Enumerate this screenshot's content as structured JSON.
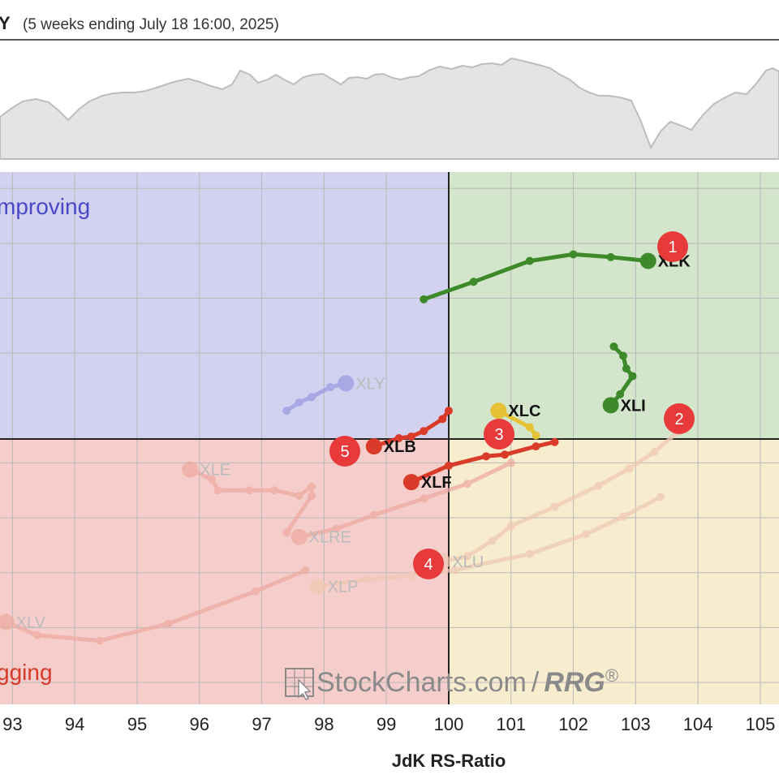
{
  "header": {
    "title": "Y",
    "subtitle": "(5 weeks ending July 18 16:00, 2025)"
  },
  "benchmark_area": {
    "fill": "#e4e4e4",
    "stroke": "#bdbdbd"
  },
  "quadrants": {
    "improving": {
      "label": "mproving",
      "color": "#4848c8",
      "fill": "#d2d2f0"
    },
    "leading": {
      "label": "",
      "color": "#2e7a1e",
      "fill": "#d3e6cc"
    },
    "weakening": {
      "label": "",
      "color": "#c9a227",
      "fill": "#f7ecce"
    },
    "lagging": {
      "label": "gging",
      "color": "#d83a2a",
      "fill": "#f5cecc"
    }
  },
  "badge_color": "#e8393b",
  "watermark": {
    "text": "StockCharts.com",
    "separator": "/",
    "suffix": "RRG",
    "reg": "®"
  },
  "chart_data": {
    "type": "scatter",
    "xlabel": "JdK RS-Ratio",
    "ylabel": "",
    "xlim": [
      92.8,
      105.3
    ],
    "ylim": [
      94.6,
      104.3
    ],
    "x_ticks": [
      "93",
      "94",
      "95",
      "96",
      "97",
      "98",
      "99",
      "100",
      "101",
      "102",
      "103",
      "104",
      "105"
    ],
    "center": [
      100,
      100
    ],
    "grid": true,
    "series": [
      {
        "name": "XLK",
        "color": "#3e8a2a",
        "faded": false,
        "points": [
          [
            99.6,
            101.98
          ],
          [
            100.4,
            102.3
          ],
          [
            101.3,
            102.68
          ],
          [
            102.0,
            102.8
          ],
          [
            102.6,
            102.75
          ],
          [
            103.2,
            102.68
          ]
        ]
      },
      {
        "name": "XLI",
        "color": "#3e8a2a",
        "faded": false,
        "points": [
          [
            102.65,
            101.12
          ],
          [
            102.8,
            100.95
          ],
          [
            102.85,
            100.72
          ],
          [
            102.95,
            100.58
          ],
          [
            102.75,
            100.25
          ],
          [
            102.6,
            100.05
          ]
        ]
      },
      {
        "name": "XLC",
        "color": "#e6c336",
        "faded": false,
        "points": [
          [
            101.4,
            99.5
          ],
          [
            101.3,
            99.65
          ],
          [
            100.8,
            99.95
          ]
        ]
      },
      {
        "name": "XLB",
        "color": "#d93a2a",
        "faded": false,
        "points": [
          [
            100.0,
            99.95
          ],
          [
            99.9,
            99.8
          ],
          [
            99.6,
            99.58
          ],
          [
            99.4,
            99.48
          ],
          [
            99.2,
            99.45
          ],
          [
            98.8,
            99.3
          ]
        ]
      },
      {
        "name": "XLF",
        "color": "#d93a2a",
        "faded": false,
        "points": [
          [
            101.7,
            99.38
          ],
          [
            101.4,
            99.3
          ],
          [
            100.9,
            99.15
          ],
          [
            100.6,
            99.12
          ],
          [
            100.0,
            98.95
          ],
          [
            99.4,
            98.65
          ]
        ]
      },
      {
        "name": "XLY",
        "color": "#9a9ae0",
        "faded": true,
        "points": [
          [
            97.4,
            99.95
          ],
          [
            97.6,
            100.1
          ],
          [
            97.8,
            100.2
          ],
          [
            98.1,
            100.38
          ],
          [
            98.35,
            100.45
          ]
        ]
      },
      {
        "name": "XLE",
        "color": "#eeaaa2",
        "faded": true,
        "points": [
          [
            97.4,
            97.73
          ],
          [
            97.8,
            98.4
          ],
          [
            97.8,
            98.57
          ],
          [
            97.6,
            98.4
          ],
          [
            97.2,
            98.5
          ],
          [
            96.8,
            98.5
          ],
          [
            96.3,
            98.5
          ],
          [
            96.2,
            98.7
          ],
          [
            95.85,
            98.88
          ]
        ]
      },
      {
        "name": "XLRE",
        "color": "#eeaaa2",
        "faded": true,
        "points": [
          [
            101.0,
            99.0
          ],
          [
            100.3,
            98.62
          ],
          [
            99.6,
            98.35
          ],
          [
            98.8,
            98.05
          ],
          [
            98.2,
            97.8
          ],
          [
            97.6,
            97.65
          ]
        ]
      },
      {
        "name": "XLU",
        "color": "#f0c8b2",
        "faded": true,
        "points": [
          [
            103.7,
            99.58
          ],
          [
            103.3,
            99.2
          ],
          [
            102.9,
            98.9
          ],
          [
            102.4,
            98.58
          ],
          [
            101.7,
            98.2
          ],
          [
            101.0,
            97.85
          ],
          [
            100.7,
            97.58
          ],
          [
            100.3,
            97.3
          ],
          [
            99.9,
            97.2
          ]
        ]
      },
      {
        "name": "XLP",
        "color": "#f0c8b2",
        "faded": true,
        "points": [
          [
            103.4,
            98.38
          ],
          [
            102.8,
            98.02
          ],
          [
            102.2,
            97.7
          ],
          [
            101.3,
            97.34
          ],
          [
            100.1,
            97.05
          ],
          [
            99.4,
            96.95
          ],
          [
            98.7,
            96.88
          ],
          [
            97.9,
            96.75
          ]
        ]
      },
      {
        "name": "XLV",
        "color": "#eeaaa2",
        "faded": true,
        "points": [
          [
            97.7,
            97.04
          ],
          [
            96.9,
            96.66
          ],
          [
            95.5,
            96.07
          ],
          [
            94.4,
            95.76
          ],
          [
            93.4,
            95.86
          ],
          [
            92.9,
            96.1
          ]
        ]
      }
    ],
    "annotations": [
      "1",
      "2",
      "3",
      "4",
      "5"
    ]
  }
}
